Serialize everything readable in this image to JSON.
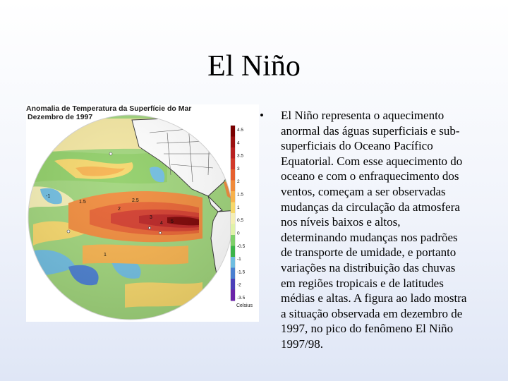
{
  "slide": {
    "title": "El Niño"
  },
  "figure": {
    "title_line1": "Anomalia de Temperatura da Superfície do Mar",
    "title_line2": "Dezembro de 1997",
    "colorbar": {
      "labels": [
        "4.5",
        "4",
        "3.5",
        "3",
        "2",
        "1.5",
        "1",
        "0.5",
        "0",
        "-0.5",
        "-1",
        "-1.5",
        "-2",
        "-3.5"
      ],
      "unit": "Celsius",
      "colors": [
        "#7a0000",
        "#9b1010",
        "#b82020",
        "#d23a2a",
        "#e6602f",
        "#f08a3a",
        "#f7b24d",
        "#f6d76a",
        "#f4eeb4",
        "#dff2a8",
        "#7fd06a",
        "#3cb44a",
        "#6fbde0",
        "#4a7fd0",
        "#4b3fb8",
        "#6a23a8"
      ]
    },
    "map_labels": [
      "1.5",
      "2",
      "2.5",
      "5",
      "3",
      "4",
      "-1",
      "1"
    ]
  },
  "body": {
    "bullet": "•",
    "lines": [
      "El Niño representa o aquecimento",
      "anormal das águas superficiais e sub-",
      "superficiais do Oceano Pacífico",
      "Equatorial. Com esse aquecimento do",
      "oceano e com o enfraquecimento dos",
      "ventos, começam a ser observadas",
      "mudanças da circulação da atmosfera",
      "nos níveis baixos e altos,",
      "determinando mudanças nos padrões",
      "de transporte de umidade, e portanto",
      "variações na distribuição das chuvas",
      "em regiões tropicais e de latitudes",
      "médias e altas. A figura ao lado mostra",
      "a situação observada em dezembro de",
      "1997, no pico do fenômeno El Niño",
      "1997/98."
    ]
  }
}
